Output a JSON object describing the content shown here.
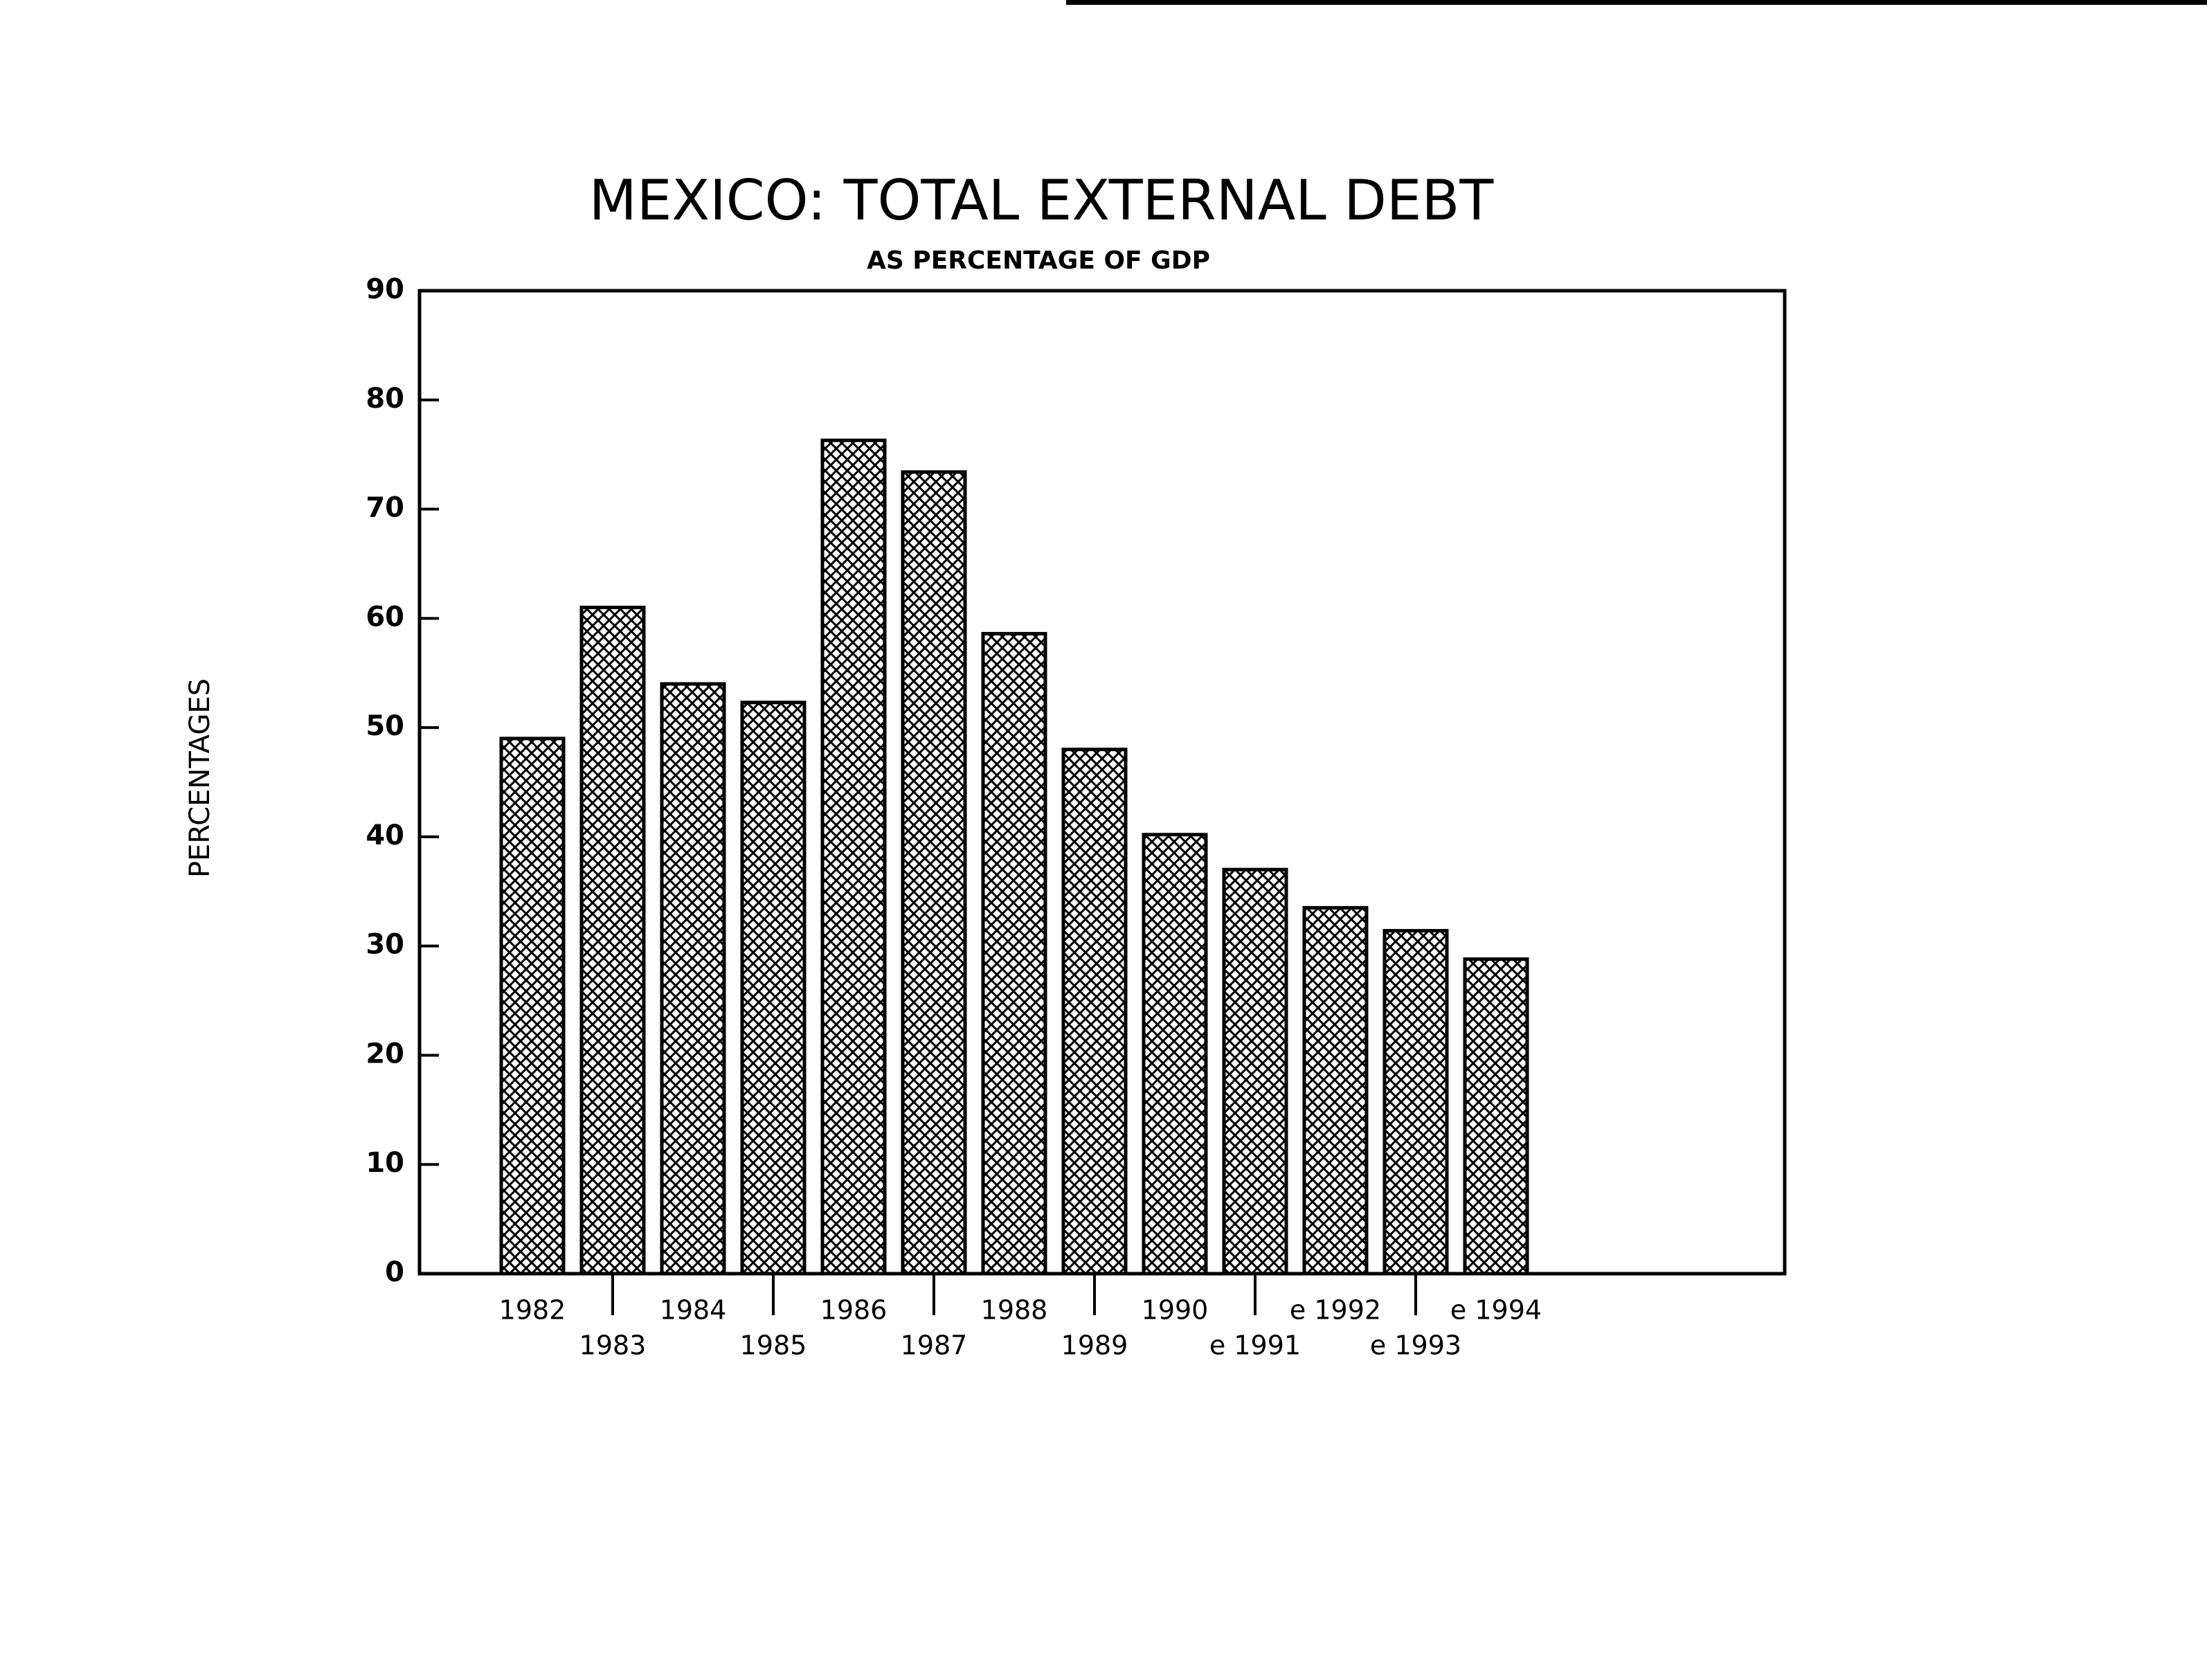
{
  "chart_data": {
    "type": "bar",
    "title": "MEXICO: TOTAL EXTERNAL DEBT",
    "subtitle": "AS PERCENTAGE OF GDP",
    "y_label": "PERCENTAGES",
    "categories": [
      "1982",
      "1983",
      "1984",
      "1985",
      "1986",
      "1987",
      "1988",
      "1989",
      "1990",
      "e 1991",
      "e 1992",
      "e 1993",
      "e 1994"
    ],
    "values": [
      49,
      61,
      54,
      52.3,
      76.3,
      73.4,
      58.6,
      48,
      40.2,
      37,
      33.5,
      31.4,
      28.8
    ],
    "color": "#000000",
    "ylim": [
      0,
      90
    ],
    "yticks": [
      0,
      10,
      20,
      30,
      40,
      50,
      60,
      70,
      80,
      90
    ],
    "grid": false
  }
}
